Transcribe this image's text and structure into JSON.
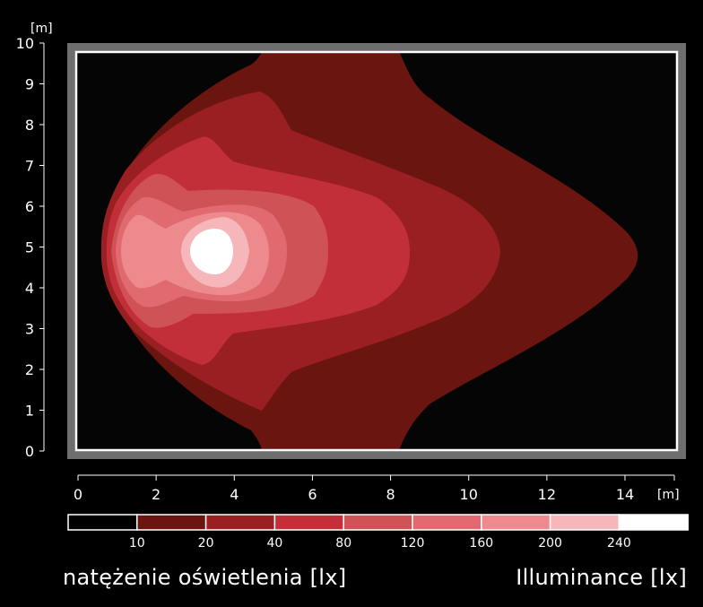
{
  "caption_left": "natężenie oświetlenia [lx]",
  "caption_right": "Illuminance [lx]",
  "chart_data": {
    "type": "heatmap",
    "subtype": "isolux-contour",
    "y_axis": {
      "unit": "[m]",
      "ticks": [
        "0",
        "1",
        "2",
        "3",
        "4",
        "5",
        "6",
        "7",
        "8",
        "9",
        "10"
      ],
      "range": [
        0,
        10
      ]
    },
    "x_axis": {
      "unit": "[m]",
      "ticks": [
        "0",
        "2",
        "4",
        "6",
        "8",
        "10",
        "12",
        "14"
      ],
      "range": [
        0,
        15.3
      ]
    },
    "legend": {
      "thresholds": [
        "10",
        "20",
        "40",
        "80",
        "120",
        "160",
        "200",
        "240"
      ],
      "colors": [
        "#000000",
        "#6b1510",
        "#9a1f22",
        "#c22f38",
        "#cf5256",
        "#e06a6f",
        "#ed8a8e",
        "#f5b7b9",
        "#ffffff"
      ]
    },
    "isolux_extents_m": [
      {
        "min_lx": 10,
        "x": [
          0.7,
          14.3
        ],
        "y": [
          0,
          10
        ]
      },
      {
        "min_lx": 20,
        "x": [
          0.7,
          10.7
        ],
        "y": [
          0.9,
          8.9
        ]
      },
      {
        "min_lx": 40,
        "x": [
          0.8,
          8.5
        ],
        "y": [
          2.0,
          7.7
        ]
      },
      {
        "min_lx": 80,
        "x": [
          0.9,
          6.6
        ],
        "y": [
          3.4,
          6.9
        ]
      },
      {
        "min_lx": 120,
        "x": [
          1.1,
          5.2
        ],
        "y": [
          3.5,
          6.6
        ]
      },
      {
        "min_lx": 160,
        "x": [
          1.2,
          4.9
        ],
        "y": [
          3.6,
          5.6
        ]
      },
      {
        "min_lx": 200,
        "x": [
          2.6,
          4.7
        ],
        "y": [
          4.0,
          5.8
        ]
      },
      {
        "min_lx": 240,
        "x": [
          2.7,
          4.3
        ],
        "y": [
          4.3,
          5.5
        ]
      }
    ]
  }
}
